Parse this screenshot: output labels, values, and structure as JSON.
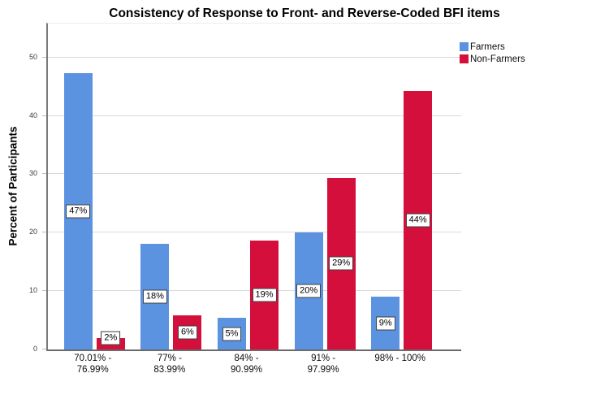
{
  "title": "Consistency of Response to Front- and Reverse-Coded BFI items",
  "chart_data": {
    "type": "bar",
    "title": "Consistency of Response to Front- and Reverse-Coded BFI items",
    "xlabel": "",
    "ylabel": "Percent of Participants",
    "categories": [
      "70.01% -\n76.99%",
      "77% -\n83.99%",
      "84% -\n90.99%",
      "91% -\n97.99%",
      "98% - 100%"
    ],
    "series": [
      {
        "name": "Farmers",
        "color": "#5b93e1",
        "values": [
          47.3,
          18.1,
          5.4,
          20.0,
          9.0
        ],
        "bar_labels": [
          "47%",
          "18%",
          "5%",
          "20%",
          "9%"
        ]
      },
      {
        "name": "Non-Farmers",
        "color": "#d50f3c",
        "values": [
          1.9,
          5.9,
          18.7,
          29.4,
          44.2
        ],
        "bar_labels": [
          "2%",
          "6%",
          "19%",
          "29%",
          "44%"
        ]
      }
    ],
    "ylim": [
      0,
      55.8
    ],
    "y_ticks": [
      0,
      10,
      20,
      30,
      40,
      50
    ],
    "grid": "horizontal",
    "legend_position": "top-right",
    "colors": {
      "gridline": "#d9d9d9",
      "axis": "#6a6a6a",
      "label_box_border": "#3f3f3f",
      "label_box_background": "#ffffff"
    }
  }
}
